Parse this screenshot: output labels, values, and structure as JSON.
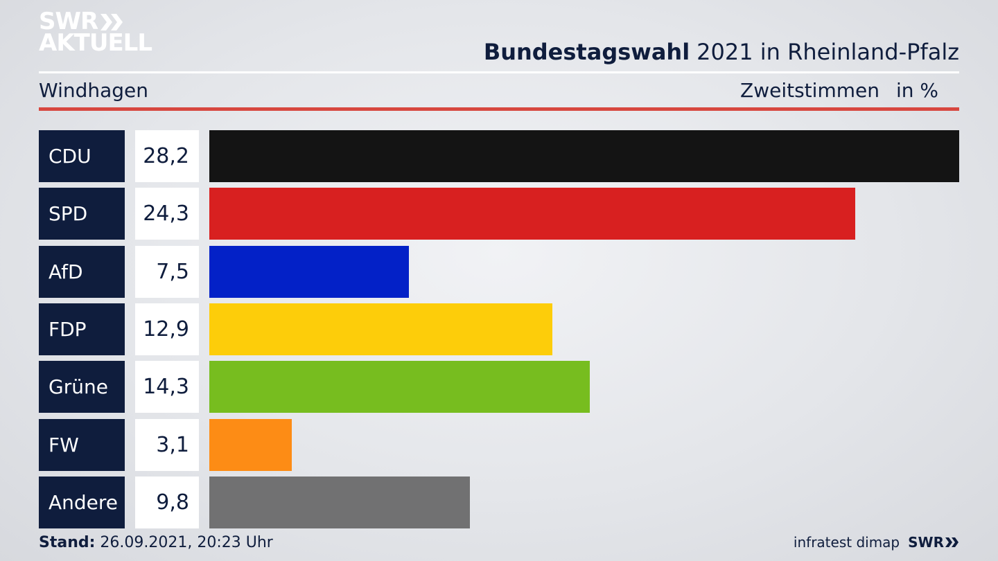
{
  "header": {
    "logo_top": "SWR",
    "logo_bottom": "AKTUELL",
    "title_bold": "Bundestagswahl",
    "title_rest": "2021 in Rheinland-Pfalz",
    "location": "Windhagen",
    "measure": "Zweitstimmen",
    "unit": "in %"
  },
  "chart_data": {
    "type": "bar",
    "orientation": "horizontal",
    "categories": [
      "CDU",
      "SPD",
      "AfD",
      "FDP",
      "Grüne",
      "FW",
      "Andere"
    ],
    "values": [
      28.2,
      24.3,
      7.5,
      12.9,
      14.3,
      3.1,
      9.8
    ],
    "value_labels": [
      "28,2",
      "24,3",
      "7,5",
      "12,9",
      "14,3",
      "3,1",
      "9,8"
    ],
    "colors": [
      "#141414",
      "#d82020",
      "#0321c7",
      "#fdcd0a",
      "#77bd1f",
      "#fd8c15",
      "#717172"
    ]
  },
  "footer": {
    "stand_label": "Stand:",
    "stand_value": "26.09.2021, 20:23 Uhr",
    "source": "infratest dimap",
    "source_logo": "SWR"
  }
}
